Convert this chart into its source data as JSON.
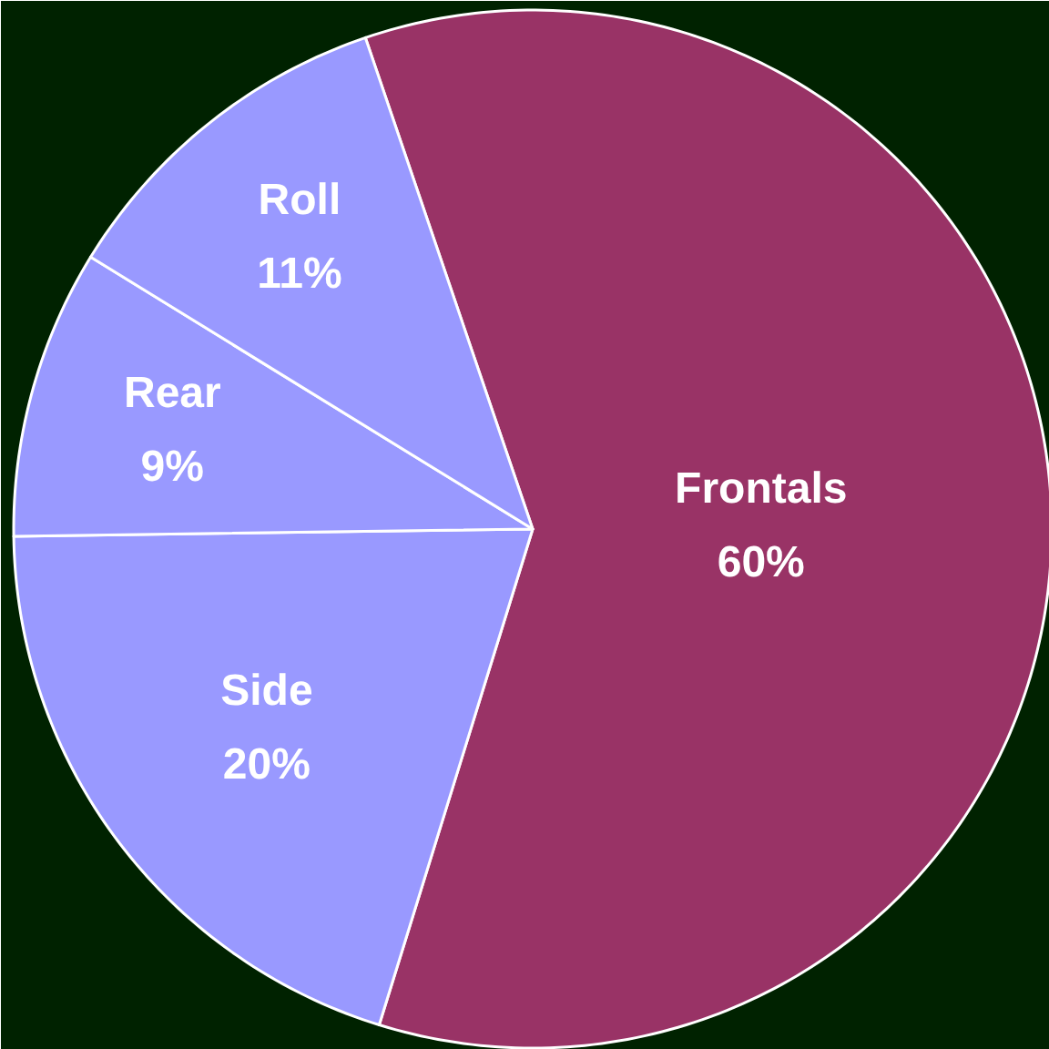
{
  "chart_data": {
    "type": "pie",
    "categories": [
      "Frontals",
      "Side",
      "Rear",
      "Roll"
    ],
    "values": [
      60,
      20,
      9,
      11
    ],
    "colors": [
      "#993366",
      "#9999ff",
      "#9999ff",
      "#9999ff"
    ],
    "value_labels": [
      "60%",
      "20%",
      "9%",
      "11%"
    ]
  }
}
